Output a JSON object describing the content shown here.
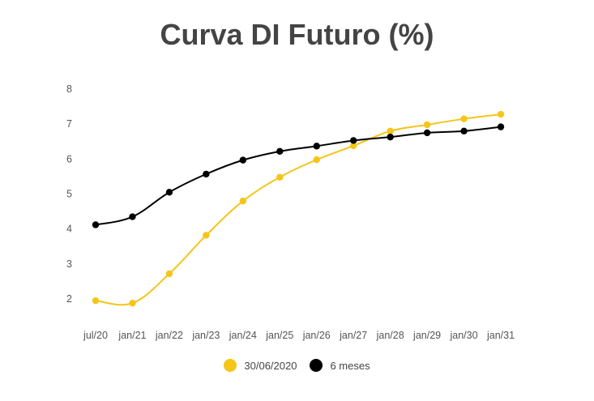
{
  "chart_data": {
    "type": "line",
    "title": "Curva DI Futuro (%)",
    "categories": [
      "jul/20",
      "jan/21",
      "jan/22",
      "jan/23",
      "jan/24",
      "jan/25",
      "jan/26",
      "jan/27",
      "jan/28",
      "jan/29",
      "jan/30",
      "jan/31"
    ],
    "ylim": [
      1.5,
      8.2
    ],
    "yticks": [
      "2",
      "3",
      "4",
      "5",
      "6",
      "7",
      "8"
    ],
    "grid": false,
    "legend_position": "bottom",
    "series": [
      {
        "name": "30/06/2020",
        "color": "#F5C518",
        "values": [
          1.95,
          1.88,
          2.72,
          3.82,
          4.8,
          5.48,
          5.98,
          6.38,
          6.8,
          6.98,
          7.15,
          7.28
        ]
      },
      {
        "name": "6 meses",
        "color": "#000000",
        "values": [
          4.12,
          4.35,
          5.05,
          5.57,
          5.97,
          6.22,
          6.37,
          6.53,
          6.63,
          6.75,
          6.8,
          6.92
        ]
      }
    ]
  }
}
